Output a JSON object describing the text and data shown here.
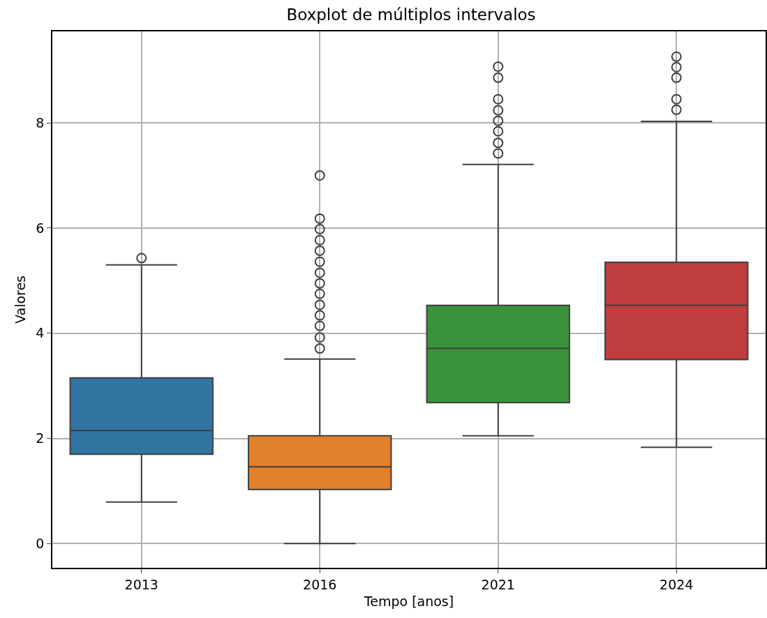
{
  "chart_data": {
    "type": "box",
    "title": "Boxplot de múltiplos intervalos",
    "xlabel": "Tempo [anos]",
    "ylabel": "Valores",
    "categories": [
      "2013",
      "2016",
      "2021",
      "2024"
    ],
    "colors": [
      "#3274a1",
      "#e1812c",
      "#3a923a",
      "#c03d3e"
    ],
    "boxes": [
      {
        "low": 0.79,
        "q1": 1.7,
        "median": 2.15,
        "q3": 3.15,
        "high": 5.3,
        "outliers": [
          5.43
        ]
      },
      {
        "low": 0,
        "q1": 1.03,
        "median": 1.46,
        "q3": 2.05,
        "high": 3.51,
        "outliers": [
          7.0,
          6.18,
          5.98,
          5.77,
          5.57,
          5.36,
          5.15,
          4.95,
          4.75,
          4.54,
          4.34,
          4.14,
          3.92,
          3.71
        ]
      },
      {
        "low": 2.05,
        "q1": 2.68,
        "median": 3.71,
        "q3": 4.53,
        "high": 7.21,
        "outliers": [
          9.07,
          8.86,
          8.45,
          8.24,
          8.04,
          7.84,
          7.62,
          7.42
        ]
      },
      {
        "low": 1.83,
        "q1": 3.5,
        "median": 4.53,
        "q3": 5.35,
        "high": 8.03,
        "outliers": [
          9.26,
          9.06,
          8.86,
          8.45,
          8.25
        ]
      }
    ],
    "ylim": [
      -0.46,
      9.74
    ],
    "yticks": [
      0,
      2,
      4,
      6,
      8
    ],
    "grid": true,
    "marker": "circle"
  }
}
